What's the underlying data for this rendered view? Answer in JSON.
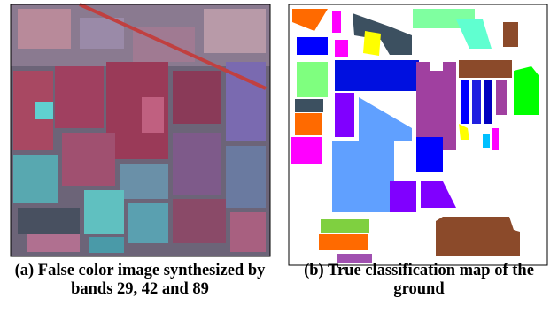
{
  "figure": {
    "panels": [
      {
        "caption": "(a) False color image synthesized by bands 29, 42 and 89"
      },
      {
        "caption": "(b) True classification map of the ground"
      }
    ]
  }
}
